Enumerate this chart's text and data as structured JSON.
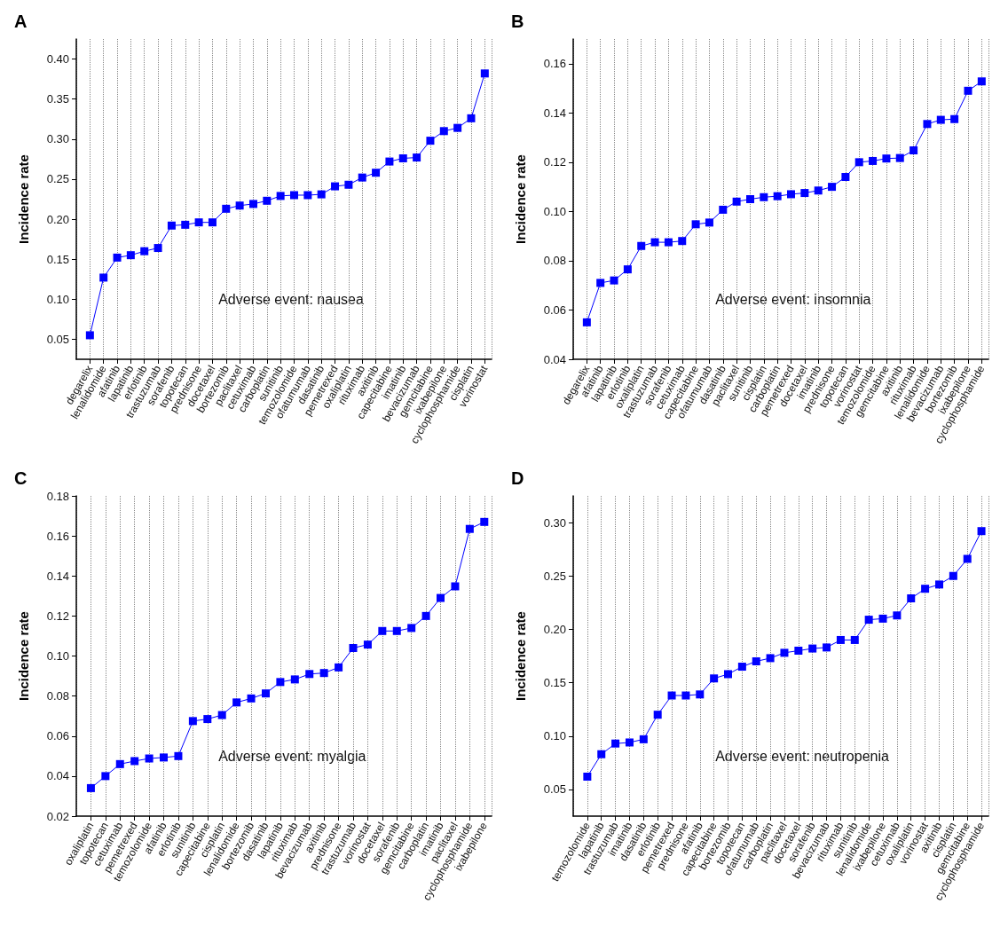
{
  "chart_data": [
    {
      "type": "line",
      "title": "A",
      "ylabel": "Incidence rate",
      "annotations": [
        "Adverse event: nausea"
      ],
      "marker": "square",
      "grid": "x",
      "categories": [
        "degarelix",
        "lenalidomide",
        "afatinib",
        "lapatinib",
        "erlotinib",
        "trastuzumab",
        "sorafenib",
        "topotecan",
        "prednisone",
        "docetaxel",
        "bortezomib",
        "paclitaxel",
        "cetuximab",
        "carboplatin",
        "sunitinib",
        "temozolomide",
        "ofatumumab",
        "dasatinib",
        "pemetrexed",
        "oxaliplatin",
        "rituximab",
        "axitinib",
        "capecitabine",
        "imatinib",
        "bevacizumab",
        "gemcitabine",
        "ixabepilone",
        "cyclophosphamide",
        "cisplatin",
        "vorinostat"
      ],
      "series": [
        {
          "color": "#0000ff",
          "values": [
            0.055,
            0.127,
            0.152,
            0.155,
            0.16,
            0.164,
            0.192,
            0.193,
            0.196,
            0.196,
            0.213,
            0.217,
            0.219,
            0.223,
            0.229,
            0.23,
            0.23,
            0.231,
            0.241,
            0.243,
            0.252,
            0.258,
            0.272,
            0.276,
            0.277,
            0.298,
            0.31,
            0.314,
            0.326,
            0.382
          ]
        }
      ],
      "ylim": [
        0.025,
        0.425
      ],
      "yticks": [
        0.05,
        {
          "value": 0.1,
          "label": "0.10"
        },
        0.15,
        {
          "value": 0.2,
          "label": "0.20"
        },
        0.25,
        {
          "value": 0.3,
          "label": "0.30"
        },
        0.35,
        {
          "value": 0.4,
          "label": "0.40"
        }
      ]
    },
    {
      "type": "line",
      "title": "B",
      "ylabel": "Incidence rate",
      "annotations": [
        "Adverse event: insomnia"
      ],
      "marker": "square",
      "grid": "x",
      "categories": [
        "degarelix",
        "afatinib",
        "lapatinib",
        "erlotinib",
        "oxaliplatin",
        "trastuzumab",
        "sorafenib",
        "cetuximab",
        "capecitabine",
        "ofatumumab",
        "dasatinib",
        "paclitaxel",
        "sunitinib",
        "cisplatin",
        "carboplatin",
        "pemetrexed",
        "docetaxel",
        "imatinib",
        "prednisone",
        "topotecan",
        "vorinostat",
        "temozolomide",
        "gemcitabine",
        "axitinib",
        "rituximab",
        "lenalidomide",
        "bevacizumab",
        "bortezomib",
        "ixabepilone",
        "cyclophosphamide"
      ],
      "series": [
        {
          "color": "#0000ff",
          "values": [
            0.055,
            0.071,
            0.072,
            0.0765,
            0.086,
            0.0875,
            0.0875,
            0.088,
            0.0948,
            0.0955,
            0.1007,
            0.104,
            0.105,
            0.1058,
            0.1062,
            0.107,
            0.1075,
            0.1085,
            0.11,
            0.114,
            0.12,
            0.1205,
            0.1215,
            0.1217,
            0.1248,
            0.1355,
            0.1372,
            0.1375,
            0.149,
            0.1528
          ]
        }
      ],
      "ylim": [
        0.04,
        0.17
      ],
      "yticks": [
        0.04,
        0.06,
        0.08,
        {
          "value": 0.1,
          "label": "0.10"
        },
        0.12,
        0.14,
        0.16
      ]
    },
    {
      "type": "line",
      "title": "C",
      "ylabel": "Incidence rate",
      "annotations": [
        "Adverse event: myalgia"
      ],
      "marker": "square",
      "grid": "x",
      "categories": [
        "oxaliplatin",
        "topotecan",
        "cetuximab",
        "pemetrexed",
        "temozolomide",
        "afatinib",
        "erlotinib",
        "sunitinib",
        "capecitabine",
        "cisplatin",
        "lenalidomide",
        "bortezomib",
        "dasatinib",
        "lapatinib",
        "rituximab",
        "bevacizumab",
        "axitinib",
        "prednisone",
        "trastuzumab",
        "vorinostat",
        "docetaxel",
        "sorafenib",
        "gemcitabine",
        "carboplatin",
        "imatinib",
        "paclitaxel",
        "cyclophosphamide",
        "ixabepilone"
      ],
      "series": [
        {
          "color": "#0000ff",
          "values": [
            0.034,
            0.04,
            0.046,
            0.0475,
            0.0488,
            0.0493,
            0.05,
            0.0675,
            0.0685,
            0.0705,
            0.0768,
            0.0788,
            0.0813,
            0.087,
            0.0883,
            0.091,
            0.0915,
            0.0943,
            0.104,
            0.1057,
            0.1125,
            0.1125,
            0.114,
            0.12,
            0.129,
            0.1348,
            0.1635,
            0.167
          ]
        }
      ],
      "ylim": [
        0.02,
        0.18
      ],
      "yticks": [
        0.02,
        0.04,
        0.06,
        0.08,
        {
          "value": 0.1,
          "label": "0.10"
        },
        0.12,
        0.14,
        0.16,
        0.18
      ]
    },
    {
      "type": "line",
      "title": "D",
      "ylabel": "Incidence rate",
      "annotations": [
        "Adverse event: neutropenia"
      ],
      "marker": "square",
      "grid": "x",
      "categories": [
        "temozolomide",
        "lapatinib",
        "trastuzumab",
        "imatinib",
        "dasatinib",
        "erlotinib",
        "pemetrexed",
        "prednisone",
        "afatinib",
        "capecitabine",
        "bortezomib",
        "topotecan",
        "ofatumumab",
        "carboplatin",
        "paclitaxel",
        "docetaxel",
        "sorafenib",
        "bevacizumab",
        "rituximab",
        "sunitinib",
        "lenalidomide",
        "ixabepilone",
        "cetuximab",
        "oxaliplatin",
        "vorinostat",
        "axitinib",
        "cisplatin",
        "gemcitabine",
        "cyclophosphamide"
      ],
      "series": [
        {
          "color": "#0000ff",
          "values": [
            0.062,
            0.083,
            0.093,
            0.094,
            0.097,
            0.12,
            0.138,
            0.138,
            0.139,
            0.154,
            0.158,
            0.165,
            0.17,
            0.173,
            0.178,
            0.18,
            0.182,
            0.183,
            0.19,
            0.19,
            0.209,
            0.21,
            0.213,
            0.229,
            0.238,
            0.242,
            0.25,
            0.266,
            0.292
          ]
        }
      ],
      "ylim": [
        0.025,
        0.325
      ],
      "yticks": [
        0.05,
        {
          "value": 0.1,
          "label": "0.10"
        },
        0.15,
        {
          "value": 0.2,
          "label": "0.20"
        },
        0.25,
        {
          "value": 0.3,
          "label": "0.30"
        }
      ]
    }
  ]
}
